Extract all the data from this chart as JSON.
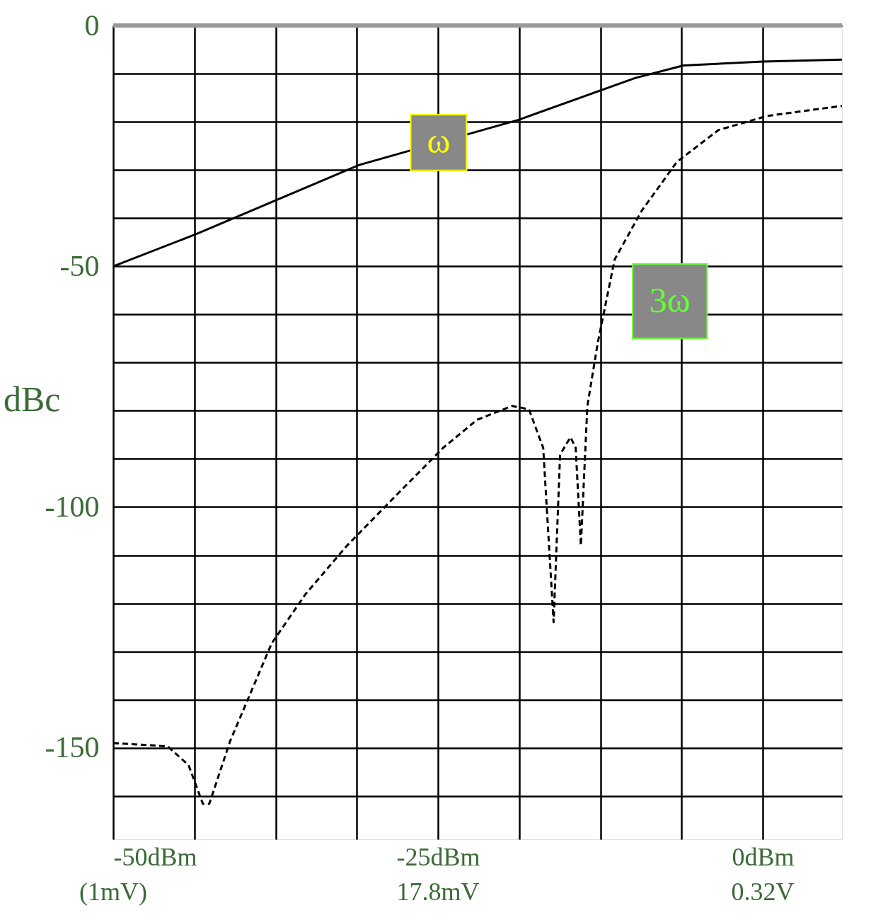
{
  "chart_data": {
    "type": "line",
    "ylabel": "dBc",
    "xlim": [
      -50,
      6.1
    ],
    "ylim": [
      -169,
      0
    ],
    "xticks": [
      {
        "value": -50,
        "label": "-50dBm"
      },
      {
        "value": -43.75,
        "label": null
      },
      {
        "value": -37.5,
        "label": null
      },
      {
        "value": -31.25,
        "label": null
      },
      {
        "value": -25,
        "label": "-25dBm"
      },
      {
        "value": -18.75,
        "label": null
      },
      {
        "value": -12.5,
        "label": null
      },
      {
        "value": -6.25,
        "label": null
      },
      {
        "value": 0,
        "label": "0dBm"
      }
    ],
    "annotations": [
      "(1mV)",
      "17.8mV",
      "0.32V"
    ],
    "yticks": [
      0,
      {
        "value": -10,
        "label": null
      },
      {
        "value": -20,
        "label": null
      },
      {
        "value": -30,
        "label": null
      },
      {
        "value": -40,
        "label": null
      },
      -50,
      {
        "value": -60,
        "label": null
      },
      {
        "value": -70,
        "label": null
      },
      {
        "value": -80,
        "label": null
      },
      {
        "value": -90,
        "label": null
      },
      -100,
      {
        "value": -110,
        "label": null
      },
      {
        "value": -120,
        "label": null
      },
      {
        "value": -130,
        "label": null
      },
      {
        "value": -140,
        "label": null
      },
      -150,
      {
        "value": -160,
        "label": null
      }
    ],
    "grid": true,
    "series": [
      {
        "name": "ω",
        "color": "#000000",
        "line_style": "solid",
        "x": [
          -50,
          -43.5,
          -31.1,
          -18.8,
          -9.8,
          -6.1,
          0,
          6.1
        ],
        "values": [
          -50,
          -43.2,
          -29,
          -19.6,
          -10.9,
          -8.3,
          -7.5,
          -7.1
        ]
      },
      {
        "name": "3ω",
        "color": "#000000",
        "line_style": "dashed",
        "x": [
          -50,
          -45.8,
          -44.2,
          -43.1,
          -42.6,
          -41,
          -37.8,
          -35.2,
          -32,
          -28.3,
          -24.6,
          -22,
          -19.3,
          -18,
          -16.9,
          -16.1,
          -15.6,
          -14.8,
          -14.4,
          -14,
          -13.5,
          -12.7,
          -11.4,
          -9.3,
          -6.6,
          -3.4,
          0.3,
          6.1
        ],
        "values": [
          -149,
          -149.7,
          -153.6,
          -161.6,
          -161.6,
          -148.6,
          -128.3,
          -118.1,
          -108,
          -97.8,
          -87.7,
          -81.9,
          -79,
          -79.7,
          -87.7,
          -123.9,
          -89.1,
          -85.5,
          -87.7,
          -108,
          -79,
          -65.9,
          -48.6,
          -38.4,
          -28.3,
          -21.7,
          -18.8,
          -16.7
        ]
      }
    ]
  }
}
